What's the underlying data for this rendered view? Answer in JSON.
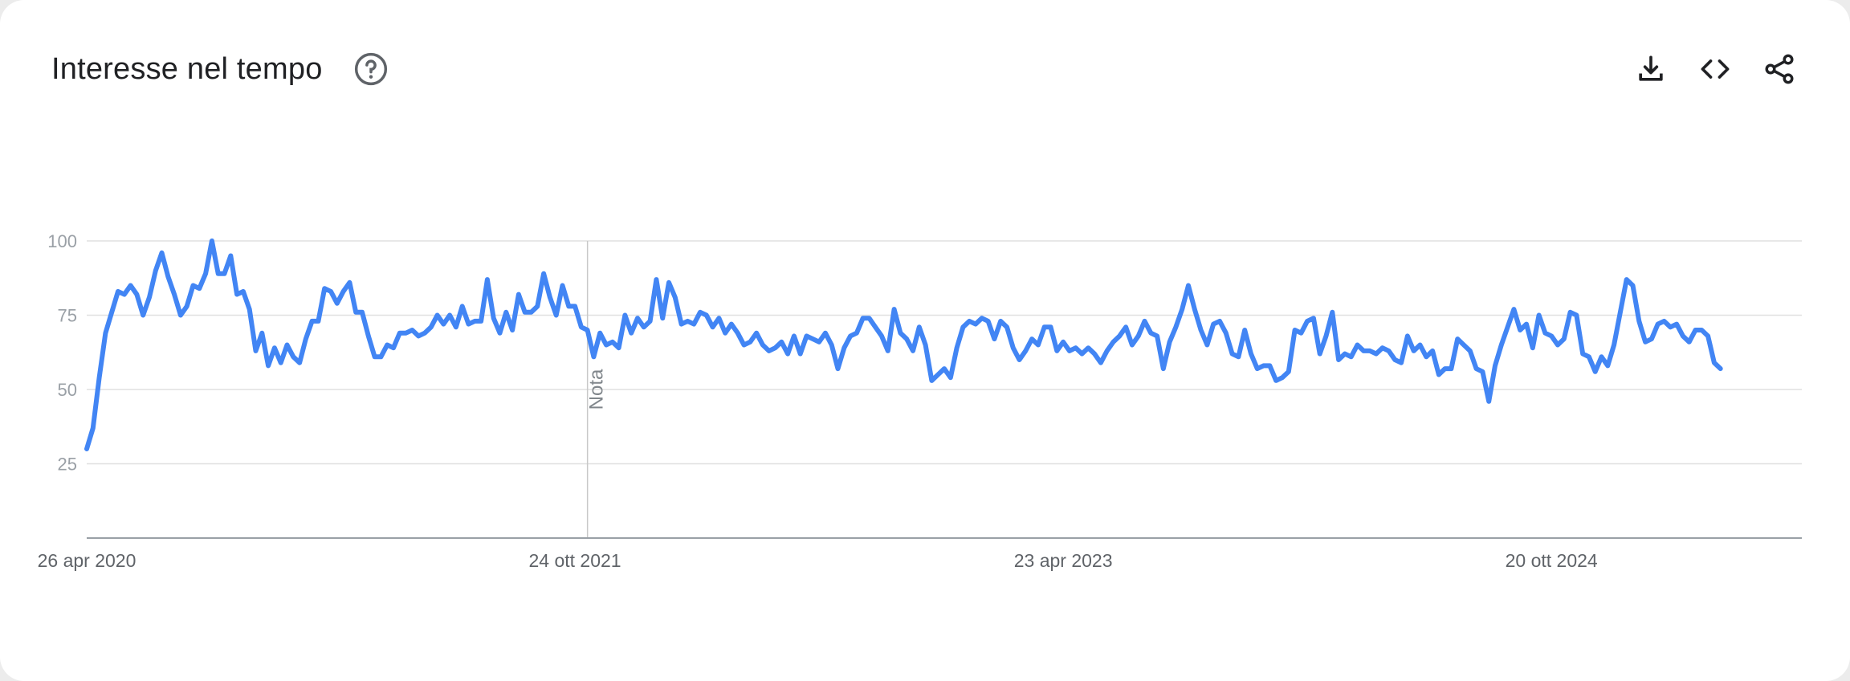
{
  "header": {
    "title": "Interesse nel tempo"
  },
  "toolbar": {
    "download_icon": "download-icon",
    "embed_icon": "code-embed-icon",
    "share_icon": "share-icon"
  },
  "colors": {
    "line": "#4285f4",
    "grid": "#e0e0e0",
    "axis": "#9aa0a6"
  },
  "chart_data": {
    "type": "line",
    "title": "",
    "xlabel": "",
    "ylabel": "",
    "ylim": [
      0,
      100
    ],
    "yticks": [
      25,
      50,
      75,
      100
    ],
    "grid": true,
    "xlim": [
      "2020-04-26",
      "2025-07-27"
    ],
    "x_tick_labels": [
      {
        "date": "2020-04-26",
        "label": "26 apr 2020"
      },
      {
        "date": "2021-10-24",
        "label": "24 ott 2021"
      },
      {
        "date": "2023-04-23",
        "label": "23 apr 2023"
      },
      {
        "date": "2024-10-20",
        "label": "20 ott 2024"
      }
    ],
    "annotations": [
      {
        "date": "2021-11-07",
        "label": "Nota"
      }
    ],
    "series": [
      {
        "values": [
          30,
          37,
          54,
          69,
          76,
          83,
          82,
          85,
          82,
          75,
          81,
          90,
          96,
          88,
          82,
          75,
          78,
          85,
          84,
          89,
          100,
          89,
          89,
          95,
          82,
          83,
          77,
          63,
          69,
          58,
          64,
          59,
          65,
          61,
          59,
          67,
          73,
          73,
          84,
          83,
          79,
          83,
          86,
          76,
          76,
          68,
          61,
          61,
          65,
          64,
          69,
          69,
          70,
          68,
          69,
          71,
          75,
          72,
          75,
          71,
          78,
          72,
          73,
          73,
          87,
          74,
          69,
          76,
          70,
          82,
          76,
          76,
          78,
          89,
          81,
          75,
          85,
          78,
          78,
          71,
          70,
          61,
          69,
          65,
          66,
          64,
          75,
          69,
          74,
          71,
          73,
          87,
          74,
          86,
          81,
          72,
          73,
          72,
          76,
          75,
          71,
          74,
          69,
          72,
          69,
          65,
          66,
          69,
          65,
          63,
          64,
          66,
          62,
          68,
          62,
          68,
          67,
          66,
          69,
          65,
          57,
          64,
          68,
          69,
          74,
          74,
          71,
          68,
          63,
          77,
          69,
          67,
          63,
          71,
          65,
          53,
          55,
          57,
          54,
          64,
          71,
          73,
          72,
          74,
          73,
          67,
          73,
          71,
          64,
          60,
          63,
          67,
          65,
          71,
          71,
          63,
          66,
          63,
          64,
          62,
          64,
          62,
          59,
          63,
          66,
          68,
          71,
          65,
          68,
          73,
          69,
          68,
          57,
          66,
          71,
          77,
          85,
          77,
          70,
          65,
          72,
          73,
          69,
          62,
          61,
          70,
          62,
          57,
          58,
          58,
          53,
          54,
          56,
          70,
          69,
          73,
          74,
          62,
          68,
          76,
          60,
          62,
          61,
          65,
          63,
          63,
          62,
          64,
          63,
          60,
          59,
          68,
          63,
          65,
          61,
          63,
          55,
          57,
          57,
          67,
          65,
          63,
          57,
          56,
          46,
          58,
          65,
          71,
          77,
          70,
          72,
          64,
          75,
          69,
          68,
          65,
          67,
          76,
          75,
          62,
          61,
          56,
          61,
          58,
          65,
          76,
          87,
          85,
          73,
          66,
          67,
          72,
          73,
          71,
          72,
          68,
          66,
          70,
          70,
          68,
          59,
          57
        ]
      }
    ]
  }
}
